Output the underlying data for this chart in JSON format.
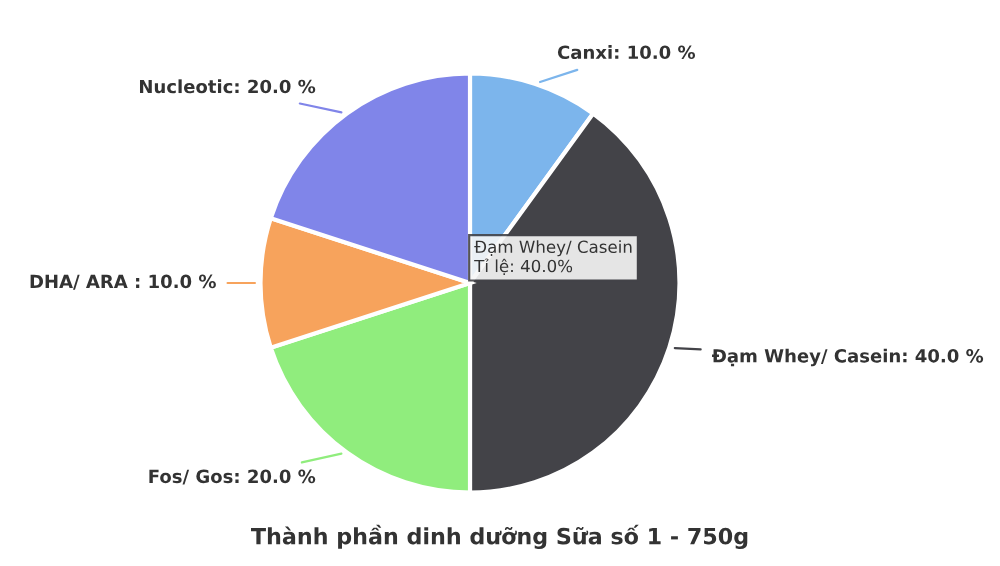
{
  "chart_data": {
    "type": "pie",
    "title": "Thành phần dinh dưỡng Sữa số 1 - 750g",
    "categories": [
      "Canxi: 10.0 %",
      "Đạm Whey/ Casein: 40.0 %",
      "Fos/ Gos: 20.0 %",
      "DHA/ ARA : 10.0 %",
      "Nucleotic: 20.0 %"
    ],
    "values": [
      10,
      40,
      20,
      10,
      20
    ],
    "colors": [
      "#7cb5ec",
      "#434348",
      "#90ed7d",
      "#f7a35c",
      "#8085e9"
    ],
    "annotations": [
      "Đạm Whey/ Casein",
      "Tỉ lệ: 40.0%"
    ]
  }
}
